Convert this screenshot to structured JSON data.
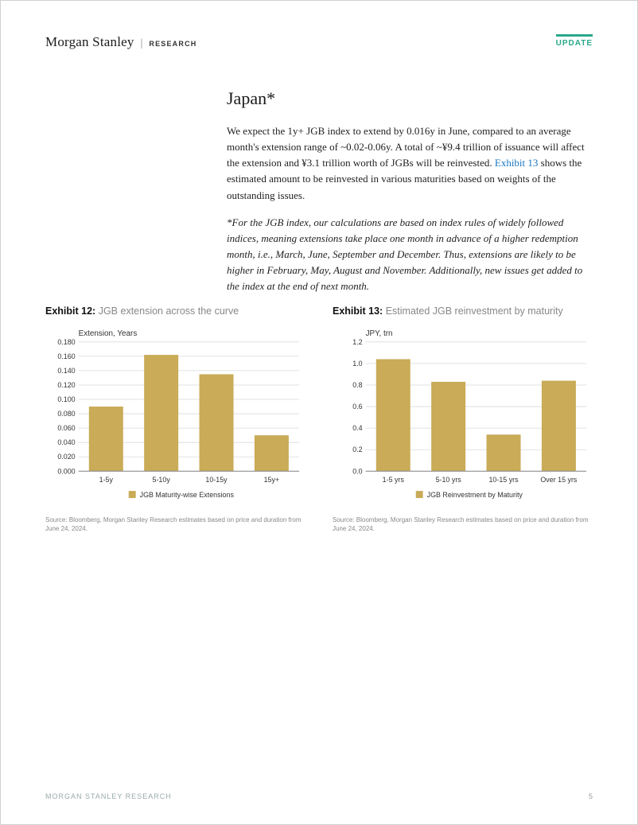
{
  "header": {
    "brand_name": "Morgan Stanley",
    "brand_sub": "RESEARCH",
    "badge": "UPDATE",
    "badge_color": "#2aa88a"
  },
  "section": {
    "title": "Japan*",
    "para1_a": "We expect the 1y+ JGB index to extend by 0.016y in June, compared to an average month's extension range of ~0.02-0.06y. A total of ~¥9.4 trillion of issuance will affect the extension and ¥3.1 trillion worth of JGBs will be reinvested.  ",
    "para1_link": "Exhibit 13",
    "para1_b": "  shows the estimated amount to be reinvested in various maturities based on weights of the outstanding issues.",
    "footnote": "*For the JGB index, our calculations are based on index rules of widely followed indices, meaning extensions take place one month in advance of a higher redemption month, i.e., March, June, September and December. Thus, extensions are likely to be higher in February, May, August and November. Additionally, new issues get added to the index at the end of next month."
  },
  "exhibit12": {
    "label_num": "Exhibit 12:",
    "label_desc": "JGB extension across the curve",
    "type": "bar",
    "y_title": "Extension, Years",
    "categories": [
      "1-5y",
      "5-10y",
      "10-15y",
      "15y+"
    ],
    "values": [
      0.09,
      0.162,
      0.135,
      0.05
    ],
    "ylim": [
      0.0,
      0.18
    ],
    "ytick_step": 0.02,
    "ytick_labels": [
      "0.000",
      "0.020",
      "0.040",
      "0.060",
      "0.080",
      "0.100",
      "0.120",
      "0.140",
      "0.160",
      "0.180"
    ],
    "bar_color": "#c9ab58",
    "grid_color": "#d9d9d9",
    "axis_color": "#888888",
    "text_color": "#333333",
    "font_size_axis": 9,
    "font_size_title": 10,
    "legend_label": "JGB Maturity-wise Extensions",
    "legend_marker_color": "#c9ab58",
    "bar_width": 0.62,
    "source": "Source: Bloomberg, Morgan Stanley Research estimates based on price and duration from June 24, 2024."
  },
  "exhibit13": {
    "label_num": "Exhibit 13:",
    "label_desc": "Estimated JGB reinvestment by maturity",
    "type": "bar",
    "y_title": "JPY, trn",
    "categories": [
      "1-5 yrs",
      "5-10 yrs",
      "10-15 yrs",
      "Over 15 yrs"
    ],
    "values": [
      1.04,
      0.83,
      0.34,
      0.84
    ],
    "ylim": [
      0.0,
      1.2
    ],
    "ytick_step": 0.2,
    "ytick_labels": [
      "0.0",
      "0.2",
      "0.4",
      "0.6",
      "0.8",
      "1.0",
      "1.2"
    ],
    "bar_color": "#c9ab58",
    "grid_color": "#d9d9d9",
    "axis_color": "#888888",
    "text_color": "#333333",
    "font_size_axis": 9,
    "font_size_title": 10,
    "legend_label": "JGB Reinvestment by Maturity",
    "legend_marker_color": "#c9ab58",
    "bar_width": 0.62,
    "source": "Source: Bloomberg, Morgan Stanley Research estimates based on price and duration from June 24, 2024."
  },
  "footer": {
    "text": "MORGAN STANLEY RESEARCH",
    "page": "5"
  }
}
